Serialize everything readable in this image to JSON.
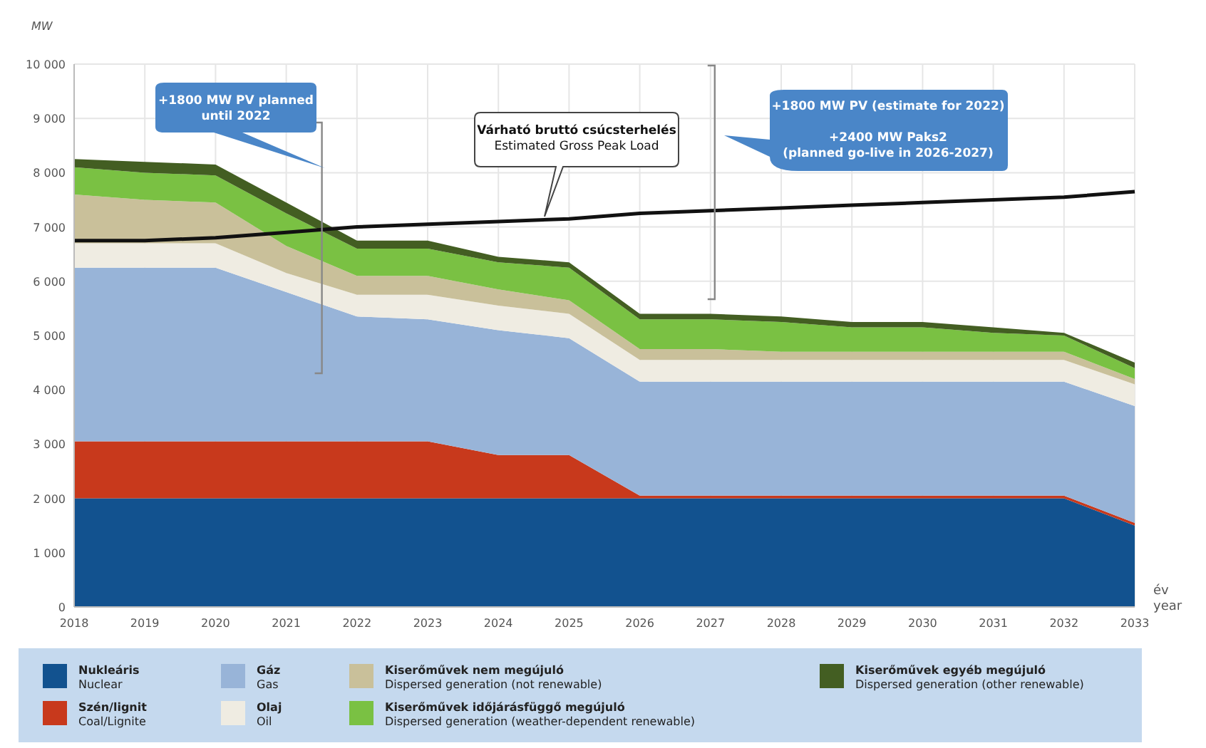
{
  "chart_data": {
    "type": "area",
    "stacked": true,
    "ylabel": "MW",
    "xlabel": "év\nyear",
    "categories": [
      "2018",
      "2019",
      "2020",
      "2021",
      "2022",
      "2023",
      "2024",
      "2025",
      "2026",
      "2027",
      "2028",
      "2029",
      "2030",
      "2031",
      "2032",
      "2033"
    ],
    "ylim": [
      0,
      10000
    ],
    "yticks": [
      0,
      {
        "value": 1000,
        "label": "1 000"
      },
      {
        "value": 2000,
        "label": "2 000"
      },
      {
        "value": 3000,
        "label": "3 000"
      },
      {
        "value": 4000,
        "label": "4 000"
      },
      {
        "value": 5000,
        "label": "5 000"
      },
      {
        "value": 6000,
        "label": "6 000"
      },
      {
        "value": 7000,
        "label": "7 000"
      },
      {
        "value": 8000,
        "label": "8 000"
      },
      {
        "value": 9000,
        "label": "9 000"
      },
      {
        "value": 10000,
        "label": "10 000"
      }
    ],
    "grid": true,
    "legend": "bottom",
    "series": [
      {
        "name": "Nukleáris\nNuclear",
        "color": "#12528f",
        "values": [
          2000,
          2000,
          2000,
          2000,
          2000,
          2000,
          2000,
          2000,
          2000,
          2000,
          2000,
          2000,
          2000,
          2000,
          2000,
          1500
        ]
      },
      {
        "name": "Szén/lignit\nCoal/Lignite",
        "color": "#c8391c",
        "values": [
          1050,
          1050,
          1050,
          1050,
          1050,
          1050,
          800,
          800,
          50,
          50,
          50,
          50,
          50,
          50,
          50,
          50
        ]
      },
      {
        "name": "Gáz\nGas",
        "color": "#98b4d8",
        "values": [
          3200,
          3200,
          3200,
          2750,
          2300,
          2250,
          2300,
          2150,
          2100,
          2100,
          2100,
          2100,
          2100,
          2100,
          2100,
          2150
        ]
      },
      {
        "name": "Olaj\nOil",
        "color": "#efece2",
        "values": [
          450,
          450,
          450,
          350,
          400,
          450,
          450,
          450,
          400,
          400,
          400,
          400,
          400,
          400,
          400,
          400
        ]
      },
      {
        "name": "Kiserőművek nem megújuló\nDispersed generation (not renewable)",
        "color": "#c9c09a",
        "values": [
          900,
          800,
          750,
          500,
          350,
          350,
          300,
          250,
          200,
          200,
          150,
          150,
          150,
          150,
          150,
          100
        ]
      },
      {
        "name": "Kiserőművek időjárásfüggő megújuló\nDispersed generation (weather-dependent renewable)",
        "color": "#7ac143",
        "values": [
          500,
          500,
          500,
          600,
          500,
          500,
          500,
          600,
          550,
          550,
          550,
          450,
          450,
          350,
          300,
          200
        ]
      },
      {
        "name": "Kiserőművek egyéb megújuló\nDispersed generation (other renewable)",
        "color": "#435e22",
        "values": [
          150,
          200,
          200,
          200,
          150,
          150,
          100,
          100,
          100,
          100,
          100,
          100,
          100,
          100,
          50,
          100
        ]
      },
      {
        "type": "line",
        "name": "Várható bruttó csúcsterhelés\nEstimated Gross Peak Load",
        "color": "#111111",
        "values": [
          6750,
          6750,
          6800,
          6900,
          7000,
          7050,
          7100,
          7150,
          7250,
          7300,
          7350,
          7400,
          7450,
          7500,
          7550,
          7650
        ]
      }
    ],
    "annotations": [
      "+1800 MW PV planned\nuntil 2022",
      "+1800 MW PV (estimate for 2022)\n\n+2400 MW Paks2\n(planned go-live in 2026-2027)"
    ]
  }
}
